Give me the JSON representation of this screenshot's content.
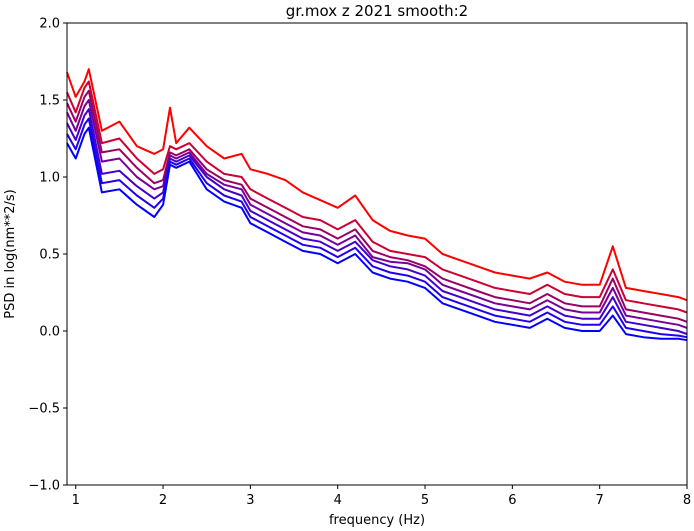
{
  "chart_data": {
    "type": "line",
    "title": "gr.mox z 2021 smooth:2",
    "xlabel": "frequency (Hz)",
    "ylabel": "PSD in log(nm**2/s)",
    "xlim": [
      0.9,
      8.0
    ],
    "ylim": [
      -1.0,
      2.0
    ],
    "xticks": [
      1,
      2,
      3,
      4,
      5,
      6,
      7,
      8
    ],
    "xtick_labels": [
      "1",
      "2",
      "3",
      "4",
      "5",
      "6",
      "7",
      "8"
    ],
    "yticks": [
      -1.0,
      -0.5,
      0.0,
      0.5,
      1.0,
      1.5,
      2.0
    ],
    "ytick_labels": [
      "−1.0",
      "−0.5",
      "0.0",
      "0.5",
      "1.0",
      "1.5",
      "2.0"
    ],
    "grid": false,
    "legend": false,
    "x": [
      0.9,
      1.0,
      1.1,
      1.15,
      1.3,
      1.5,
      1.7,
      1.9,
      2.0,
      2.08,
      2.15,
      2.3,
      2.5,
      2.7,
      2.9,
      3.0,
      3.2,
      3.4,
      3.6,
      3.8,
      4.0,
      4.2,
      4.4,
      4.6,
      4.8,
      5.0,
      5.2,
      5.4,
      5.6,
      5.8,
      6.0,
      6.2,
      6.4,
      6.6,
      6.8,
      7.0,
      7.15,
      7.3,
      7.5,
      7.7,
      7.9,
      8.0
    ],
    "series": [
      {
        "color": "#ff0000",
        "values": [
          1.68,
          1.52,
          1.62,
          1.7,
          1.3,
          1.36,
          1.2,
          1.15,
          1.18,
          1.45,
          1.22,
          1.32,
          1.2,
          1.12,
          1.15,
          1.05,
          1.02,
          0.98,
          0.9,
          0.85,
          0.8,
          0.88,
          0.72,
          0.65,
          0.62,
          0.6,
          0.5,
          0.46,
          0.42,
          0.38,
          0.36,
          0.34,
          0.38,
          0.32,
          0.3,
          0.3,
          0.55,
          0.28,
          0.26,
          0.24,
          0.22,
          0.2
        ]
      },
      {
        "color": "#cc0033",
        "values": [
          1.55,
          1.42,
          1.58,
          1.62,
          1.22,
          1.25,
          1.12,
          1.02,
          1.05,
          1.2,
          1.18,
          1.22,
          1.1,
          1.02,
          1.0,
          0.92,
          0.86,
          0.8,
          0.74,
          0.72,
          0.66,
          0.72,
          0.58,
          0.52,
          0.5,
          0.48,
          0.4,
          0.36,
          0.32,
          0.28,
          0.26,
          0.24,
          0.3,
          0.24,
          0.22,
          0.22,
          0.4,
          0.2,
          0.18,
          0.16,
          0.14,
          0.12
        ]
      },
      {
        "color": "#990066",
        "values": [
          1.48,
          1.36,
          1.52,
          1.56,
          1.16,
          1.18,
          1.06,
          0.96,
          0.98,
          1.16,
          1.14,
          1.18,
          1.05,
          0.98,
          0.95,
          0.86,
          0.8,
          0.74,
          0.68,
          0.66,
          0.6,
          0.66,
          0.52,
          0.48,
          0.46,
          0.42,
          0.34,
          0.3,
          0.26,
          0.22,
          0.2,
          0.18,
          0.24,
          0.18,
          0.16,
          0.16,
          0.34,
          0.14,
          0.12,
          0.1,
          0.08,
          0.06
        ]
      },
      {
        "color": "#770099",
        "values": [
          1.42,
          1.3,
          1.46,
          1.5,
          1.1,
          1.12,
          1.0,
          0.92,
          0.94,
          1.14,
          1.12,
          1.16,
          1.02,
          0.95,
          0.92,
          0.82,
          0.76,
          0.7,
          0.64,
          0.62,
          0.56,
          0.62,
          0.48,
          0.45,
          0.44,
          0.4,
          0.3,
          0.26,
          0.22,
          0.18,
          0.16,
          0.14,
          0.2,
          0.14,
          0.12,
          0.12,
          0.28,
          0.1,
          0.08,
          0.06,
          0.04,
          0.02
        ]
      },
      {
        "color": "#4400cc",
        "values": [
          1.35,
          1.24,
          1.4,
          1.44,
          1.02,
          1.04,
          0.94,
          0.86,
          0.9,
          1.12,
          1.1,
          1.14,
          1.0,
          0.92,
          0.88,
          0.78,
          0.72,
          0.66,
          0.6,
          0.58,
          0.52,
          0.58,
          0.46,
          0.42,
          0.4,
          0.36,
          0.26,
          0.22,
          0.18,
          0.14,
          0.12,
          0.1,
          0.16,
          0.1,
          0.08,
          0.08,
          0.22,
          0.06,
          0.04,
          0.02,
          0.0,
          -0.02
        ]
      },
      {
        "color": "#2200ee",
        "values": [
          1.28,
          1.18,
          1.34,
          1.38,
          0.96,
          0.98,
          0.88,
          0.8,
          0.86,
          1.1,
          1.08,
          1.12,
          0.96,
          0.88,
          0.84,
          0.74,
          0.68,
          0.62,
          0.56,
          0.54,
          0.48,
          0.54,
          0.42,
          0.38,
          0.36,
          0.32,
          0.22,
          0.18,
          0.14,
          0.1,
          0.08,
          0.06,
          0.12,
          0.06,
          0.04,
          0.04,
          0.16,
          0.02,
          0.0,
          -0.02,
          -0.03,
          -0.04
        ]
      },
      {
        "color": "#0000ff",
        "values": [
          1.22,
          1.12,
          1.28,
          1.32,
          0.9,
          0.92,
          0.82,
          0.74,
          0.82,
          1.08,
          1.06,
          1.1,
          0.92,
          0.84,
          0.8,
          0.7,
          0.64,
          0.58,
          0.52,
          0.5,
          0.44,
          0.5,
          0.38,
          0.34,
          0.32,
          0.28,
          0.18,
          0.14,
          0.1,
          0.06,
          0.04,
          0.02,
          0.08,
          0.02,
          0.0,
          0.0,
          0.1,
          -0.02,
          -0.04,
          -0.05,
          -0.05,
          -0.06
        ]
      }
    ]
  }
}
